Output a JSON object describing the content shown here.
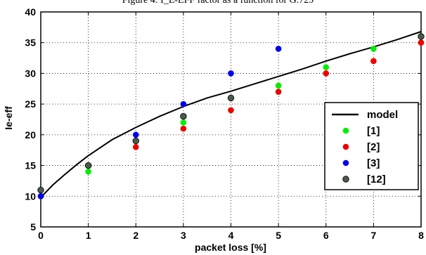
{
  "chart_data": {
    "type": "scatter",
    "title": "Figure 4: I_E-EFF factor as a function for G.729",
    "xlabel": "packet loss [%]",
    "ylabel": "Ie-eff",
    "xlim": [
      0,
      8
    ],
    "ylim": [
      5,
      40
    ],
    "x_ticks": [
      "0",
      "1",
      "2",
      "3",
      "4",
      "5",
      "6",
      "7",
      "8"
    ],
    "y_ticks": [
      "5",
      "10",
      "15",
      "20",
      "25",
      "30",
      "35",
      "40"
    ],
    "grid": true,
    "legend_position": "right",
    "series": [
      {
        "name": "model",
        "kind": "line",
        "color": "#000000",
        "points": [
          [
            0,
            9.8
          ],
          [
            0.25,
            11.8
          ],
          [
            0.5,
            13.5
          ],
          [
            0.75,
            15.1
          ],
          [
            1,
            16.6
          ],
          [
            1.5,
            19.2
          ],
          [
            2,
            21.2
          ],
          [
            2.5,
            23.0
          ],
          [
            3,
            24.6
          ],
          [
            3.5,
            26.0
          ],
          [
            4,
            27.1
          ],
          [
            4.5,
            28.3
          ],
          [
            5,
            29.5
          ],
          [
            5.5,
            30.7
          ],
          [
            6,
            32.0
          ],
          [
            6.5,
            33.2
          ],
          [
            7,
            34.3
          ],
          [
            7.5,
            35.5
          ],
          [
            8,
            36.8
          ]
        ]
      },
      {
        "name": "[1]",
        "kind": "marker",
        "color": "#00ee00",
        "points": [
          [
            0,
            10
          ],
          [
            1,
            14
          ],
          [
            2,
            19
          ],
          [
            3,
            22
          ],
          [
            4,
            26
          ],
          [
            5,
            28
          ],
          [
            6,
            31
          ],
          [
            7,
            34
          ],
          [
            8,
            36
          ]
        ]
      },
      {
        "name": "[2]",
        "kind": "marker",
        "color": "#ee0000",
        "points": [
          [
            0,
            10
          ],
          [
            1,
            15
          ],
          [
            2,
            18
          ],
          [
            3,
            21
          ],
          [
            4,
            24
          ],
          [
            5,
            27
          ],
          [
            6,
            30
          ],
          [
            7,
            32
          ],
          [
            8,
            35
          ]
        ]
      },
      {
        "name": "[3]",
        "kind": "marker",
        "color": "#0000ee",
        "points": [
          [
            0,
            10
          ],
          [
            1,
            15
          ],
          [
            2,
            20
          ],
          [
            3,
            25
          ],
          [
            4,
            30
          ],
          [
            5,
            34
          ]
        ]
      },
      {
        "name": "[12]",
        "kind": "marker",
        "color": "#4a5a4a",
        "points": [
          [
            0,
            11
          ],
          [
            1,
            15
          ],
          [
            2,
            19
          ],
          [
            3,
            23
          ],
          [
            4,
            26
          ],
          [
            8,
            36
          ]
        ]
      }
    ]
  }
}
